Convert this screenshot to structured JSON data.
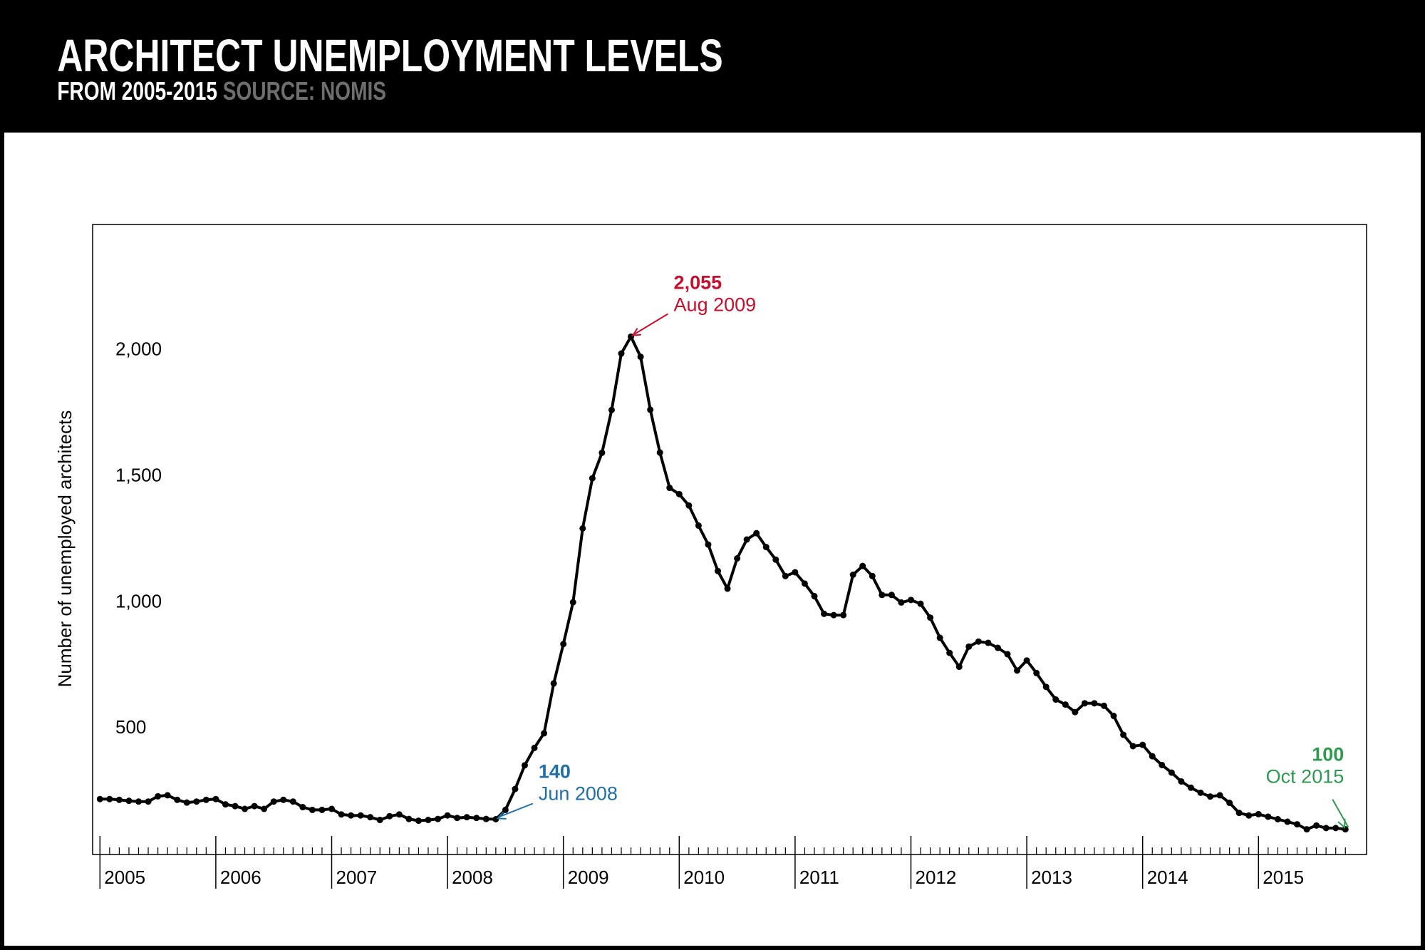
{
  "chart_data": {
    "type": "line",
    "title": "ARCHITECT UNEMPLOYMENT LEVELS",
    "subtitle": "FROM 2005-2015",
    "source": "SOURCE: NOMIS",
    "y_label": "Number of unemployed architects",
    "color": "#000000",
    "categories": [
      "2005",
      null,
      null,
      null,
      null,
      null,
      null,
      null,
      null,
      null,
      null,
      null,
      "2006",
      null,
      null,
      null,
      null,
      null,
      null,
      null,
      null,
      null,
      null,
      null,
      "2007",
      null,
      null,
      null,
      null,
      null,
      null,
      null,
      null,
      null,
      null,
      null,
      "2008",
      null,
      null,
      null,
      null,
      null,
      null,
      null,
      null,
      null,
      null,
      null,
      "2009",
      null,
      null,
      null,
      null,
      null,
      null,
      null,
      null,
      null,
      null,
      null,
      "2010",
      null,
      null,
      null,
      null,
      null,
      null,
      null,
      null,
      null,
      null,
      null,
      "2011",
      null,
      null,
      null,
      null,
      null,
      null,
      null,
      null,
      null,
      null,
      null,
      "2012",
      null,
      null,
      null,
      null,
      null,
      null,
      null,
      null,
      null,
      null,
      null,
      "2013",
      null,
      null,
      null,
      null,
      null,
      null,
      null,
      null,
      null,
      null,
      null,
      "2014",
      null,
      null,
      null,
      null,
      null,
      null,
      null,
      null,
      null,
      null,
      null,
      "2015",
      null,
      null,
      null,
      null,
      null,
      null,
      null,
      null,
      null
    ],
    "values": [
      220,
      220,
      217,
      213,
      210,
      210,
      231,
      235,
      217,
      206,
      210,
      217,
      220,
      199,
      192,
      181,
      192,
      181,
      210,
      217,
      210,
      188,
      177,
      177,
      181,
      159,
      155,
      155,
      148,
      137,
      152,
      159,
      141,
      134,
      137,
      141,
      155,
      145,
      148,
      145,
      141,
      140,
      177,
      260,
      354,
      423,
      481,
      679,
      835,
      1001,
      1294,
      1493,
      1594,
      1764,
      1988,
      2055,
      1975,
      1765,
      1595,
      1455,
      1430,
      1385,
      1305,
      1230,
      1125,
      1055,
      1175,
      1250,
      1275,
      1220,
      1170,
      1105,
      1120,
      1075,
      1025,
      955,
      950,
      950,
      1110,
      1145,
      1105,
      1030,
      1030,
      1000,
      1010,
      995,
      940,
      860,
      800,
      745,
      825,
      845,
      840,
      820,
      795,
      730,
      770,
      720,
      665,
      615,
      595,
      565,
      600,
      600,
      590,
      550,
      475,
      430,
      435,
      390,
      355,
      325,
      290,
      265,
      245,
      230,
      235,
      205,
      165,
      155,
      160,
      150,
      140,
      130,
      120,
      100,
      115,
      105,
      105,
      100
    ],
    "value_labels": [
      null,
      null,
      null,
      null,
      null,
      null,
      null,
      null,
      null,
      null,
      null,
      null,
      null,
      null,
      null,
      null,
      null,
      null,
      null,
      null,
      null,
      null,
      null,
      null,
      null,
      null,
      null,
      null,
      null,
      null,
      null,
      null,
      null,
      null,
      null,
      null,
      null,
      null,
      null,
      null,
      null,
      "140",
      null,
      null,
      null,
      null,
      null,
      null,
      null,
      null,
      null,
      null,
      null,
      null,
      null,
      "2,055",
      null,
      null,
      null,
      null,
      null,
      null,
      null,
      null,
      null,
      null,
      null,
      null,
      null,
      null,
      null,
      null,
      null,
      null,
      null,
      null,
      null,
      null,
      null,
      null,
      null,
      null,
      null,
      null,
      null,
      null,
      null,
      null,
      null,
      null,
      null,
      null,
      null,
      null,
      null,
      null,
      null,
      null,
      null,
      null,
      null,
      null,
      null,
      null,
      null,
      null,
      null,
      null,
      null,
      null,
      null,
      null,
      null,
      null,
      null,
      null,
      null,
      null,
      null,
      null,
      null,
      null,
      null,
      null,
      null,
      null,
      null,
      null,
      null,
      "100"
    ],
    "annotations": [
      {
        "text": "Jun 2008",
        "color": "#1f6fa8"
      },
      {
        "text": "Aug 2009",
        "color": "#c8102e"
      },
      {
        "text": "Oct 2015",
        "color": "#2e9a4f"
      }
    ],
    "ylim": [
      0,
      2500
    ],
    "yticks": [
      500,
      {
        "value": 1000,
        "label": "1,000"
      },
      {
        "value": 1500,
        "label": "1,500"
      },
      {
        "value": 2000,
        "label": "2,000"
      }
    ],
    "grid": false
  }
}
